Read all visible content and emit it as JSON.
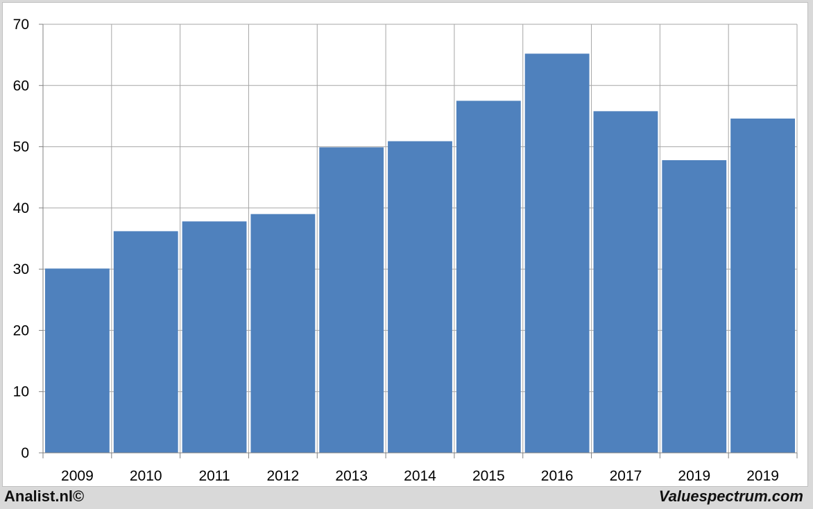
{
  "chart_data": {
    "type": "bar",
    "categories": [
      "2009",
      "2010",
      "2011",
      "2012",
      "2013",
      "2014",
      "2015",
      "2016",
      "2017",
      "2019",
      "2019"
    ],
    "values": [
      30.1,
      36.2,
      37.8,
      39.0,
      49.9,
      50.9,
      57.5,
      65.2,
      55.8,
      47.8,
      54.6
    ],
    "ylim": [
      0,
      70
    ],
    "yticks": [
      0,
      10,
      20,
      30,
      40,
      50,
      60,
      70
    ],
    "title": "",
    "xlabel": "",
    "ylabel": "",
    "grid": true,
    "bar_color": "#4f81bd",
    "grid_color": "#a6a6a6"
  },
  "footer": {
    "left": "Analist.nl©",
    "right": "Valuespectrum.com"
  }
}
